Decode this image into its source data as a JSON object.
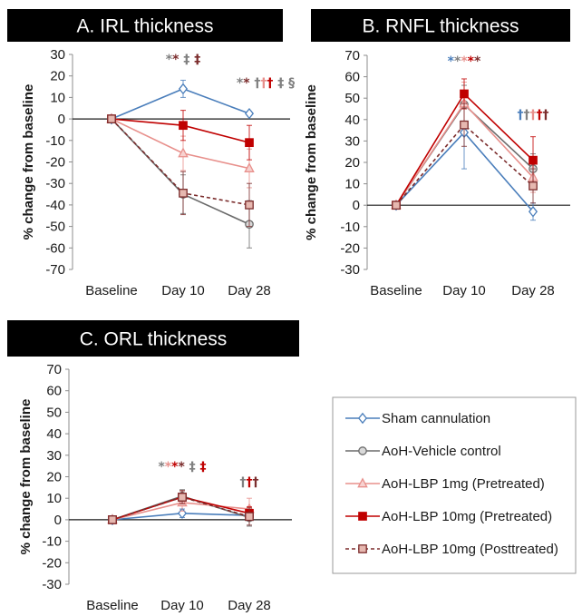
{
  "series_styles": [
    {
      "name": "Sham cannulation",
      "color": "#4a7ebb",
      "marker": "diamond",
      "fill": "#ffffff",
      "dash": false
    },
    {
      "name": "AoH-Vehicle control",
      "color": "#6b6b6b",
      "marker": "circle",
      "fill": "#d9d9d9",
      "dash": false
    },
    {
      "name": "AoH-LBP 1mg  (Pretreated)",
      "color": "#e8908c",
      "marker": "triangle",
      "fill": "#f7d2d0",
      "dash": false
    },
    {
      "name": "AoH-LBP 10mg (Pretreated)",
      "color": "#c00000",
      "marker": "square",
      "fill": "#c00000",
      "dash": false
    },
    {
      "name": "AoH-LBP 10mg (Posttreated)",
      "color": "#7b2c2c",
      "marker": "square",
      "fill": "#e6b8b0",
      "dash": true
    }
  ],
  "chart_data": [
    {
      "type": "line",
      "title": "A. IRL thickness",
      "ylabel": "% change  from baseline",
      "categories": [
        "Baseline",
        "Day 10",
        "Day 28"
      ],
      "ylim": [
        -70,
        30
      ],
      "yticks": [
        "30",
        "20",
        "10",
        "0",
        "-10",
        "-20",
        "-30",
        "-40",
        "-50",
        "-60",
        "-70"
      ],
      "series": [
        {
          "values": [
            0,
            14,
            2.5
          ],
          "errors": [
            0,
            4,
            1
          ]
        },
        {
          "values": [
            0,
            -35,
            -49
          ],
          "errors": [
            0,
            9,
            11
          ]
        },
        {
          "values": [
            0,
            -16,
            -23
          ],
          "errors": [
            0,
            8,
            9
          ]
        },
        {
          "values": [
            0,
            -3,
            -11
          ],
          "errors": [
            0,
            7,
            8
          ]
        },
        {
          "values": [
            0,
            -34.5,
            -40
          ],
          "errors": [
            0,
            10,
            10
          ]
        }
      ],
      "annotations": [
        {
          "x": "Day 10",
          "marks": [
            {
              "text": "*",
              "color": "#808080"
            },
            {
              "text": "*",
              "color": "#7b2c2c"
            },
            {
              "text": " ‡",
              "color": "#808080"
            },
            {
              "text": " ‡",
              "color": "#7b2c2c"
            }
          ]
        },
        {
          "x": "Day 28",
          "marks": [
            {
              "text": "*",
              "color": "#808080"
            },
            {
              "text": "*",
              "color": "#7b2c2c"
            },
            {
              "text": " †",
              "color": "#808080"
            },
            {
              "text": "†",
              "color": "#e8908c"
            },
            {
              "text": "†",
              "color": "#c00000"
            },
            {
              "text": " ‡",
              "color": "#808080"
            },
            {
              "text": " §",
              "color": "#808080"
            }
          ]
        }
      ]
    },
    {
      "type": "line",
      "title": "B. RNFL thickness",
      "ylabel": "% change  from baseline",
      "categories": [
        "Baseline",
        "Day 10",
        "Day 28"
      ],
      "ylim": [
        -30,
        70
      ],
      "yticks": [
        "70",
        "60",
        "50",
        "40",
        "30",
        "20",
        "10",
        "0",
        "-10",
        "-20",
        "-30"
      ],
      "series": [
        {
          "values": [
            0,
            34,
            -3
          ],
          "errors": [
            0,
            17,
            4
          ]
        },
        {
          "values": [
            0,
            47,
            17
          ],
          "errors": [
            0,
            9,
            7
          ]
        },
        {
          "values": [
            0,
            47.5,
            13
          ],
          "errors": [
            0,
            10,
            7
          ]
        },
        {
          "values": [
            0,
            52,
            21
          ],
          "errors": [
            0,
            7,
            11
          ]
        },
        {
          "values": [
            0,
            37.5,
            9
          ],
          "errors": [
            0,
            10,
            8
          ]
        }
      ],
      "annotations": [
        {
          "x": "Day 10",
          "marks": [
            {
              "text": "*",
              "color": "#4a7ebb"
            },
            {
              "text": "*",
              "color": "#808080"
            },
            {
              "text": "*",
              "color": "#e8908c"
            },
            {
              "text": "*",
              "color": "#c00000"
            },
            {
              "text": "*",
              "color": "#7b2c2c"
            }
          ]
        },
        {
          "x": "Day 28",
          "marks": [
            {
              "text": "†",
              "color": "#4a7ebb"
            },
            {
              "text": "†",
              "color": "#808080"
            },
            {
              "text": "†",
              "color": "#e8908c"
            },
            {
              "text": "†",
              "color": "#c00000"
            },
            {
              "text": "†",
              "color": "#7b2c2c"
            }
          ]
        }
      ]
    },
    {
      "type": "line",
      "title": "C. ORL thickness",
      "ylabel": "% change  from baseline",
      "categories": [
        "Baseline",
        "Day 10",
        "Day 28"
      ],
      "ylim": [
        -30,
        70
      ],
      "yticks": [
        "70",
        "60",
        "50",
        "40",
        "30",
        "20",
        "10",
        "0",
        "-10",
        "-20",
        "-30"
      ],
      "series": [
        {
          "values": [
            0,
            3,
            2
          ],
          "errors": [
            0,
            2,
            2
          ]
        },
        {
          "values": [
            0,
            11,
            1
          ],
          "errors": [
            0,
            3,
            4
          ]
        },
        {
          "values": [
            0,
            8,
            5
          ],
          "errors": [
            0,
            4,
            5
          ]
        },
        {
          "values": [
            0,
            10.5,
            3
          ],
          "errors": [
            0,
            3,
            3
          ]
        },
        {
          "values": [
            0,
            10.5,
            1.5
          ],
          "errors": [
            0,
            3,
            4
          ]
        }
      ],
      "annotations": [
        {
          "x": "Day 10",
          "marks": [
            {
              "text": "*",
              "color": "#808080"
            },
            {
              "text": "*",
              "color": "#e8908c"
            },
            {
              "text": "*",
              "color": "#c00000"
            },
            {
              "text": "*",
              "color": "#7b2c2c"
            },
            {
              "text": " ‡",
              "color": "#808080"
            },
            {
              "text": " ‡",
              "color": "#c00000"
            }
          ]
        },
        {
          "x": "Day 28",
          "marks": [
            {
              "text": "†",
              "color": "#808080"
            },
            {
              "text": "†",
              "color": "#c00000"
            },
            {
              "text": "†",
              "color": "#7b2c2c"
            }
          ]
        }
      ]
    }
  ],
  "legend": {
    "placement": "bottom-right",
    "items": [
      "Sham cannulation",
      "AoH-Vehicle control",
      "AoH-LBP 1mg  (Pretreated)",
      "AoH-LBP 10mg (Pretreated)",
      "AoH-LBP 10mg (Posttreated)"
    ]
  }
}
